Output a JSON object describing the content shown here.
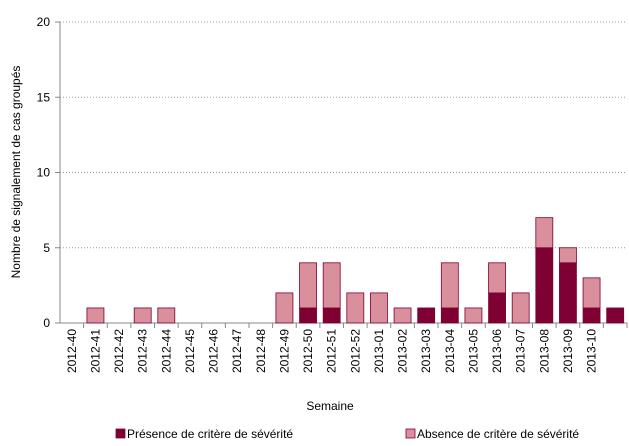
{
  "chart_data": {
    "type": "stacked_bar",
    "y_label": "Nombre de signalement de cas groupés",
    "x_label": "Semaine",
    "categories": [
      "2012-40",
      "2012-41",
      "2012-42",
      "2012-43",
      "2012-44",
      "2012-45",
      "2012-46",
      "2012-47",
      "2012-48",
      "2012-49",
      "2012-50",
      "2012-51",
      "2012-52",
      "2013-01",
      "2013-02",
      "2013-03",
      "2013-04",
      "2013-05",
      "2013-06",
      "2013-07",
      "2013-08",
      "2013-09",
      "2013-10",
      null
    ],
    "series": [
      {
        "name": "Présence de critère de sévérité",
        "color": "#7f0033",
        "values": [
          0,
          0,
          0,
          0,
          0,
          0,
          0,
          0,
          0,
          0,
          1,
          1,
          0,
          0,
          0,
          1,
          1,
          0,
          2,
          0,
          5,
          4,
          1,
          1
        ]
      },
      {
        "name": "Absence de critère de sévérité",
        "color": "#d9909c",
        "values": [
          0,
          1,
          0,
          1,
          1,
          0,
          0,
          0,
          0,
          2,
          3,
          3,
          2,
          2,
          1,
          0,
          3,
          1,
          2,
          2,
          2,
          1,
          2,
          0
        ]
      }
    ],
    "ylim": [
      0,
      20
    ],
    "yticks": [
      0,
      5,
      10,
      15,
      20
    ],
    "grid": true,
    "legend": "bottom"
  }
}
